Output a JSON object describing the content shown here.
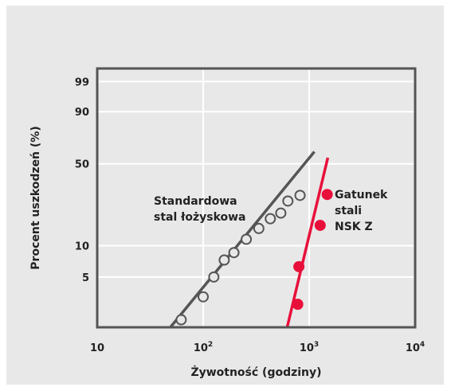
{
  "chart_data": {
    "type": "scatter",
    "xscale": "log",
    "yscale": "probability",
    "xlim": [
      10,
      10000
    ],
    "ylim": [
      1.6,
      99.8
    ],
    "grid": true,
    "xlabel": "Żywotność (godziny)",
    "ylabel": "Procent uszkodzeń (%)",
    "xticks": [
      {
        "value": 10,
        "base": "10",
        "exp": ""
      },
      {
        "value": 100,
        "base": "10",
        "exp": "2"
      },
      {
        "value": 1000,
        "base": "10",
        "exp": "3"
      },
      {
        "value": 10000,
        "base": "10",
        "exp": "4"
      }
    ],
    "yticks": [
      {
        "value": 5,
        "label": "5"
      },
      {
        "value": 10,
        "label": "10"
      },
      {
        "value": 50,
        "label": "50"
      },
      {
        "value": 90,
        "label": "90"
      },
      {
        "value": 99,
        "label": "99"
      }
    ],
    "series": [
      {
        "label_lines": [
          "Standardowa",
          "stal łożyskowa"
        ],
        "color": "#555555",
        "marker": "open-circle",
        "points": [
          {
            "x": 62,
            "y": 1.9
          },
          {
            "x": 100,
            "y": 3.2
          },
          {
            "x": 126,
            "y": 5.0
          },
          {
            "x": 158,
            "y": 7.3
          },
          {
            "x": 195,
            "y": 8.6
          },
          {
            "x": 255,
            "y": 11.5
          },
          {
            "x": 335,
            "y": 14.5
          },
          {
            "x": 430,
            "y": 17.8
          },
          {
            "x": 540,
            "y": 20.0
          },
          {
            "x": 630,
            "y": 25.5
          },
          {
            "x": 820,
            "y": 28.5
          }
        ],
        "fit": [
          {
            "x": 49,
            "y": 1.6
          },
          {
            "x": 1120,
            "y": 60.0
          }
        ]
      },
      {
        "label_lines": [
          "Gatunek",
          "stali",
          "NSK Z"
        ],
        "color": "#e8103a",
        "marker": "filled-circle",
        "points": [
          {
            "x": 780,
            "y": 2.7
          },
          {
            "x": 800,
            "y": 6.3
          },
          {
            "x": 1270,
            "y": 15.5
          },
          {
            "x": 1480,
            "y": 29.0
          }
        ],
        "fit": [
          {
            "x": 620,
            "y": 1.6
          },
          {
            "x": 1500,
            "y": 55.0
          }
        ]
      }
    ]
  }
}
